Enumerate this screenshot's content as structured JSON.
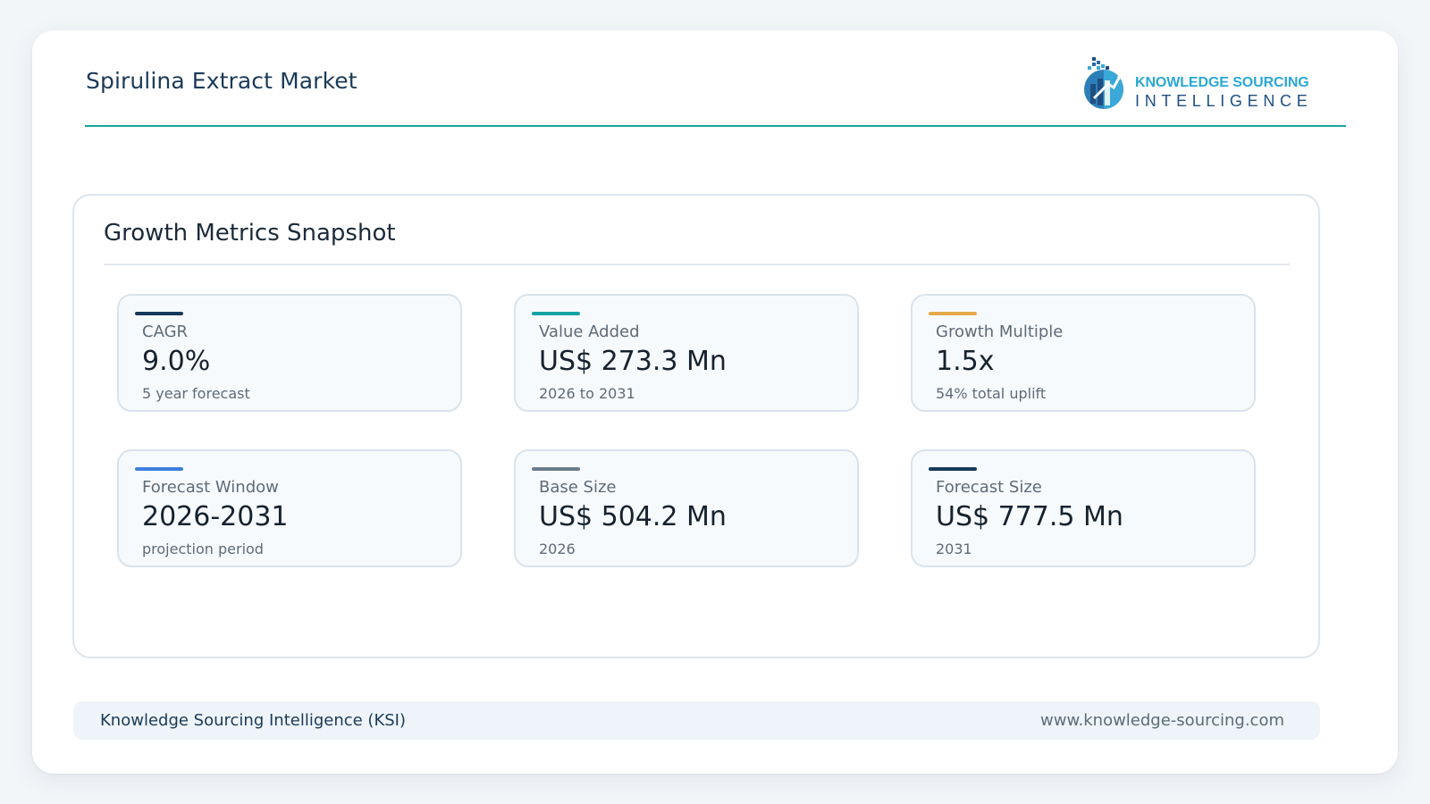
{
  "header": {
    "title": "Spirulina Extract Market",
    "logo": {
      "icon": "ksi-logo-icon",
      "line1": "KNOWLEDGE SOURCING",
      "line2": "INTELLIGENCE"
    }
  },
  "panel": {
    "title": "Growth Metrics Snapshot",
    "cards": [
      {
        "label": "CAGR",
        "value": "9.0%",
        "sub": "5 year forecast",
        "accent": "#173a5c"
      },
      {
        "label": "Value Added",
        "value": "US$ 273.3 Mn",
        "sub": "2026 to 2031",
        "accent": "#14a3a5"
      },
      {
        "label": "Growth Multiple",
        "value": "1.5x",
        "sub": "54% total uplift",
        "accent": "#e6a94a"
      },
      {
        "label": "Forecast Window",
        "value": "2026-2031",
        "sub": "projection period",
        "accent": "#3c7fdc"
      },
      {
        "label": "Base Size",
        "value": "US$ 504.2 Mn",
        "sub": "2026",
        "accent": "#6b7a8a"
      },
      {
        "label": "Forecast Size",
        "value": "US$ 777.5 Mn",
        "sub": "2031",
        "accent": "#173a5c"
      }
    ]
  },
  "footer": {
    "left": "Knowledge Sourcing Intelligence (KSI)",
    "right": "www.knowledge-sourcing.com"
  },
  "colors": {
    "header_rule": "#17a69a",
    "page_background": "#f3f6f9"
  }
}
